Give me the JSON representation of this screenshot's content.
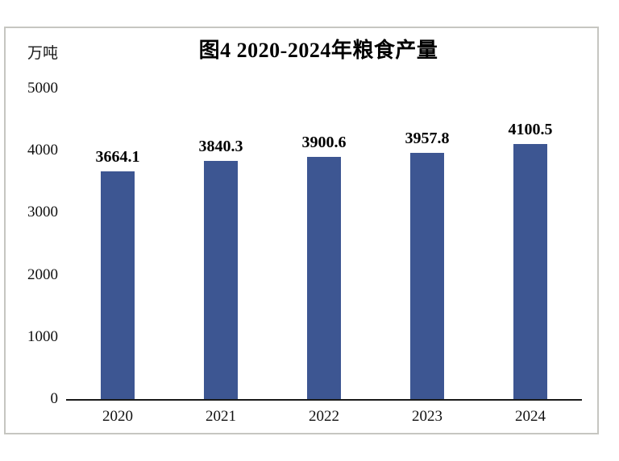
{
  "chart_data": {
    "type": "bar",
    "title": "图4 2020-2024年粮食产量",
    "unit_label": "万吨",
    "categories": [
      "2020",
      "2021",
      "2022",
      "2023",
      "2024"
    ],
    "values": [
      3664.1,
      3840.3,
      3900.6,
      3957.8,
      4100.5
    ],
    "data_labels": [
      "3664.1",
      "3840.3",
      "3900.6",
      "3957.8",
      "4100.5"
    ],
    "xlabel": "",
    "ylabel": "万吨",
    "ylim": [
      0,
      5000
    ],
    "y_ticks": [
      0,
      1000,
      2000,
      3000,
      4000,
      5000
    ],
    "y_tick_labels": [
      "0",
      "1000",
      "2000",
      "3000",
      "4000",
      "5000"
    ],
    "grid": false,
    "legend_position": "none",
    "colors": {
      "bar": "#3d5692",
      "axis": "#1a1a1a",
      "panel_border": "#c6c6c1",
      "text": "#000000"
    }
  }
}
